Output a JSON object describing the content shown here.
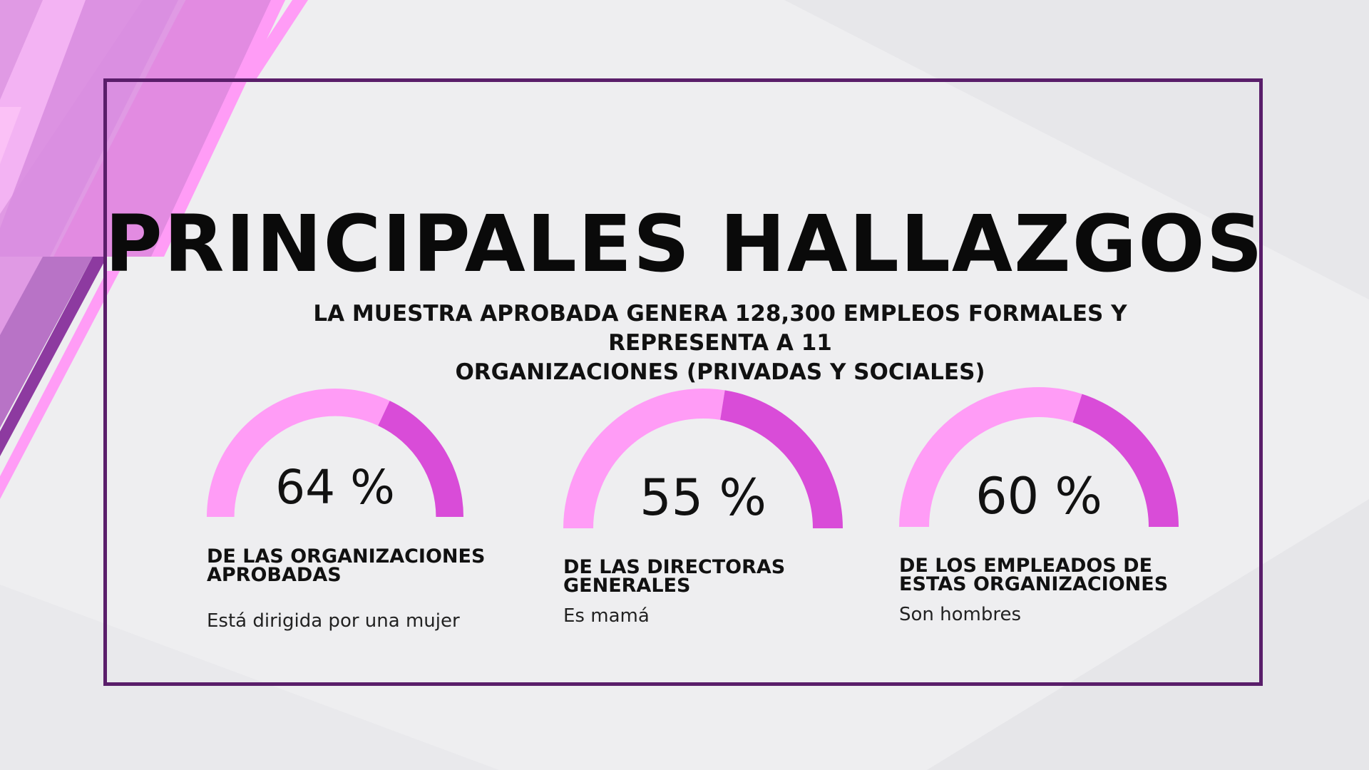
{
  "slide": {
    "title": "PRINCIPALES HALLAZGOS",
    "subtitle_line1": "LA MUESTRA APROBADA GENERA 128,300 EMPLEOS FORMALES Y REPRESENTA A 11",
    "subtitle_line2": "ORGANIZACIONES (PRIVADAS Y SOCIALES)"
  },
  "colors": {
    "frame": "#5a1e6a",
    "gauge_light": "#ff9cf6",
    "gauge_dark": "#d94cd8",
    "deco_pink": "#ff9cf6",
    "deco_purple": "#b86ac4"
  },
  "gauges": [
    {
      "value": 64,
      "percent_text": "64 %",
      "label_line1": "DE LAS ORGANIZACIONES",
      "label_line2": "APROBADAS",
      "description": "Está dirigida por una mujer"
    },
    {
      "value": 55,
      "percent_text": "55 %",
      "label_line1": "DE LAS DIRECTORAS",
      "label_line2": "GENERALES",
      "description": "Es mamá"
    },
    {
      "value": 60,
      "percent_text": "60 %",
      "label_line1": "DE LOS EMPLEADOS DE",
      "label_line2": "ESTAS ORGANIZACIONES",
      "description": "Son hombres"
    }
  ]
}
